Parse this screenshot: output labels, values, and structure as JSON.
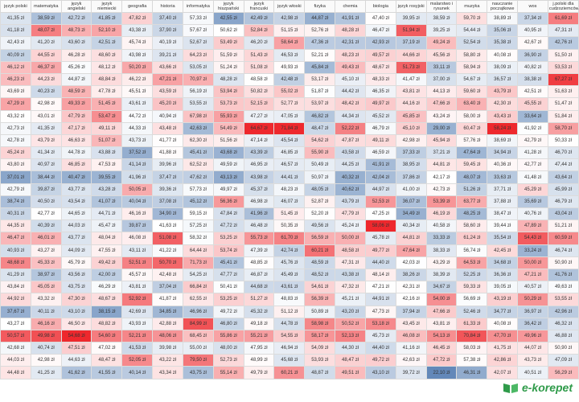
{
  "table": {
    "columns": [
      "język polski",
      "matematyka",
      "język angielski",
      "język niemiecki",
      "geografia",
      "historia",
      "informatyka",
      "język hiszpański",
      "język francuski",
      "język włoski",
      "fizyka",
      "chemia",
      "biologia",
      "język rosyjski",
      "malarstwo i rysunek",
      "muzyka",
      "nauczanie początkowe",
      "wos",
      "j.polski dla cudzoziemców"
    ],
    "rows": [
      [
        "41,35 zł",
        "38,59 zł",
        "42,72 zł",
        "41,85 zł",
        "47,82 zł",
        "37,40 zł",
        "57,33 zł",
        "42,55 zł",
        "42,49 zł",
        "42,98 zł",
        "44,87 zł",
        "41,91 zł",
        "47,40 zł",
        "39,95 zł",
        "38,59 zł",
        "59,70 zł",
        "38,89 zł",
        "37,34 zł",
        "61,69 zł"
      ],
      [
        "41,18 zł",
        "48,07 zł",
        "48,73 zł",
        "52,10 zł",
        "43,38 zł",
        "37,90 zł",
        "57,67 zł",
        "50,62 zł",
        "52,84 zł",
        "51,15 zł",
        "52,76 zł",
        "48,28 zł",
        "46,47 zł",
        "51,94 zł",
        "39,25 zł",
        "54,44 zł",
        "35,06 zł",
        "40,95 zł",
        "47,31 zł"
      ],
      [
        "42,43 zł",
        "41,20 zł",
        "43,60 zł",
        "42,51 zł",
        "45,74 zł",
        "40,19 zł",
        "52,67 zł",
        "53,49 zł",
        "46,20 zł",
        "58,64 zł",
        "47,36 zł",
        "42,31 zł",
        "42,93 zł",
        "37,19 zł",
        "49,24 zł",
        "52,54 zł",
        "35,38 zł",
        "42,67 zł",
        "42,76 zł"
      ],
      [
        "40,09 zł",
        "44,55 zł",
        "46,28 zł",
        "48,60 zł",
        "43,98 zł",
        "39,21 zł",
        "64,23 zł",
        "51,59 zł",
        "51,43 zł",
        "46,53 zł",
        "52,21 zł",
        "48,23 zł",
        "49,57 zł",
        "44,66 zł",
        "45,56 zł",
        "58,80 zł",
        "40,08 zł",
        "36,90 zł",
        "51,50 zł"
      ],
      [
        "46,12 zł",
        "46,37 zł",
        "45,26 zł",
        "48,12 zł",
        "50,20 zł",
        "43,66 zł",
        "53,05 zł",
        "51,24 zł",
        "51,08 zł",
        "49,93 zł",
        "45,84 zł",
        "49,43 zł",
        "48,67 zł",
        "51,73 zł",
        "33,11 zł",
        "58,94 zł",
        "38,09 zł",
        "40,82 zł",
        "53,53 zł"
      ],
      [
        "46,23 zł",
        "44,23 zł",
        "44,87 zł",
        "48,84 zł",
        "46,22 zł",
        "47,21 zł",
        "70,97 zł",
        "48,28 zł",
        "48,58 zł",
        "42,48 zł",
        "53,17 zł",
        "45,10 zł",
        "48,33 zł",
        "41,47 zł",
        "37,00 zł",
        "54,67 zł",
        "36,57 zł",
        "38,38 zł",
        "67,27 zł"
      ],
      [
        "43,69 zł",
        "40,23 zł",
        "48,59 zł",
        "47,78 zł",
        "45,51 zł",
        "43,59 zł",
        "56,19 zł",
        "53,94 zł",
        "50,82 zł",
        "55,02 zł",
        "51,87 zł",
        "44,42 zł",
        "46,35 zł",
        "43,81 zł",
        "44,13 zł",
        "59,60 zł",
        "43,79 zł",
        "42,51 zł",
        "51,63 zł"
      ],
      [
        "47,29 zł",
        "42,98 zł",
        "49,33 zł",
        "51,45 zł",
        "43,61 zł",
        "45,20 zł",
        "53,55 zł",
        "53,73 zł",
        "52,15 zł",
        "52,77 zł",
        "53,97 zł",
        "48,42 zł",
        "49,97 zł",
        "44,16 zł",
        "47,66 zł",
        "63,40 zł",
        "42,30 zł",
        "45,55 zł",
        "51,47 zł"
      ],
      [
        "43,32 zł",
        "43,01 zł",
        "47,79 zł",
        "53,47 zł",
        "44,72 zł",
        "40,94 zł",
        "67,98 zł",
        "55,93 zł",
        "47,27 zł",
        "47,05 zł",
        "46,82 zł",
        "44,34 zł",
        "45,52 zł",
        "45,85 zł",
        "43,24 zł",
        "58,00 zł",
        "43,43 zł",
        "33,64 zł",
        "51,84 zł"
      ],
      [
        "42,73 zł",
        "41,35 zł",
        "47,17 zł",
        "49,11 zł",
        "44,33 zł",
        "43,48 zł",
        "42,63 zł",
        "54,49 zł",
        "64,67 zł",
        "71,84 zł",
        "48,47 zł",
        "52,22 zł",
        "46,79 zł",
        "45,10 zł",
        "29,00 zł",
        "60,47 zł",
        "58,24 zł",
        "41,92 zł",
        "58,70 zł"
      ],
      [
        "42,78 zł",
        "43,79 zł",
        "46,63 zł",
        "51,07 zł",
        "43,73 zł",
        "41,77 zł",
        "62,30 zł",
        "51,56 zł",
        "47,14 zł",
        "45,54 zł",
        "54,62 zł",
        "47,87 zł",
        "49,11 zł",
        "42,98 zł",
        "45,94 zł",
        "57,76 zł",
        "38,69 zł",
        "42,79 zł",
        "50,33 zł"
      ],
      [
        "45,24 zł",
        "41,34 zł",
        "44,78 zł",
        "43,88 zł",
        "37,52 zł",
        "41,88 zł",
        "45,41 zł",
        "43,68 zł",
        "43,39 zł",
        "46,85 zł",
        "55,90 zł",
        "43,58 zł",
        "46,59 zł",
        "37,33 zł",
        "37,21 zł",
        "47,64 zł",
        "34,94 zł",
        "41,28 zł",
        "46,70 zł"
      ],
      [
        "43,80 zł",
        "40,97 zł",
        "46,85 zł",
        "47,53 zł",
        "41,14 zł",
        "39,96 zł",
        "62,52 zł",
        "49,59 zł",
        "46,95 zł",
        "46,57 zł",
        "50,49 zł",
        "44,25 zł",
        "41,91 zł",
        "38,95 zł",
        "44,81 zł",
        "59,45 zł",
        "40,36 zł",
        "42,77 zł",
        "47,44 zł"
      ],
      [
        "37,01 zł",
        "38,44 zł",
        "40,47 zł",
        "39,55 zł",
        "41,96 zł",
        "37,47 zł",
        "47,62 zł",
        "43,13 zł",
        "43,98 zł",
        "44,41 zł",
        "50,97 zł",
        "40,32 zł",
        "42,04 zł",
        "37,86 zł",
        "42,17 zł",
        "48,07 zł",
        "33,63 zł",
        "41,48 zł",
        "43,64 zł"
      ],
      [
        "42,79 zł",
        "39,87 zł",
        "43,77 zł",
        "43,28 zł",
        "50,05 zł",
        "39,36 zł",
        "57,73 zł",
        "49,97 zł",
        "45,37 zł",
        "48,23 zł",
        "48,05 zł",
        "40,62 zł",
        "44,97 zł",
        "41,00 zł",
        "42,73 zł",
        "51,26 zł",
        "37,71 zł",
        "45,29 zł",
        "45,99 zł"
      ],
      [
        "38,74 zł",
        "40,50 zł",
        "43,54 zł",
        "41,07 zł",
        "40,04 zł",
        "37,08 zł",
        "45,12 zł",
        "56,36 zł",
        "46,98 zł",
        "46,07 zł",
        "52,87 zł",
        "43,79 zł",
        "52,53 zł",
        "36,07 zł",
        "53,39 zł",
        "63,77 zł",
        "37,88 zł",
        "35,69 zł",
        "46,79 zł"
      ],
      [
        "40,31 zł",
        "42,77 zł",
        "44,65 zł",
        "44,71 zł",
        "46,16 zł",
        "34,90 zł",
        "59,15 zł",
        "47,84 zł",
        "41,96 zł",
        "51,45 zł",
        "52,20 zł",
        "47,79 zł",
        "47,25 zł",
        "34,49 zł",
        "46,19 zł",
        "48,25 zł",
        "38,47 zł",
        "40,76 zł",
        "43,04 zł"
      ],
      [
        "44,35 zł",
        "40,39 zł",
        "44,03 zł",
        "45,47 zł",
        "39,87 zł",
        "41,63 zł",
        "57,25 zł",
        "47,72 zł",
        "46,48 zł",
        "50,35 zł",
        "49,56 zł",
        "45,24 zł",
        "58,06 zł",
        "40,34 zł",
        "40,58 zł",
        "58,60 zł",
        "39,44 zł",
        "47,89 zł",
        "51,21 zł"
      ],
      [
        "46,47 zł",
        "46,01 zł",
        "43,77 zł",
        "48,04 zł",
        "46,08 zł",
        "51,08 zł",
        "58,32 zł",
        "53,25 zł",
        "55,73 zł",
        "61,70 zł",
        "56,59 zł",
        "50,00 zł",
        "45,78 zł",
        "44,81 zł",
        "33,33 zł",
        "61,24 zł",
        "35,54 zł",
        "54,43 zł",
        "60,59 zł"
      ],
      [
        "40,93 zł",
        "43,27 zł",
        "44,09 zł",
        "47,55 zł",
        "43,11 zł",
        "41,22 zł",
        "64,44 zł",
        "53,74 zł",
        "47,39 zł",
        "42,74 zł",
        "60,21 zł",
        "48,58 zł",
        "49,77 zł",
        "47,64 zł",
        "38,33 zł",
        "56,74 zł",
        "42,45 zł",
        "33,24 zł",
        "46,74 zł"
      ],
      [
        "48,68 zł",
        "45,33 zł",
        "45,79 zł",
        "49,42 zł",
        "52,51 zł",
        "50,70 zł",
        "71,73 zł",
        "45,41 zł",
        "48,85 zł",
        "45,76 zł",
        "48,59 zł",
        "47,31 zł",
        "44,40 zł",
        "42,03 zł",
        "43,29 zł",
        "64,53 zł",
        "34,68 zł",
        "50,00 zł",
        "50,90 zł"
      ],
      [
        "41,29 zł",
        "38,97 zł",
        "43,56 zł",
        "42,00 zł",
        "45,57 zł",
        "42,48 zł",
        "54,25 zł",
        "47,77 zł",
        "46,87 zł",
        "45,49 zł",
        "48,52 zł",
        "43,38 zł",
        "48,14 zł",
        "38,26 zł",
        "38,39 zł",
        "52,25 zł",
        "36,36 zł",
        "47,21 zł",
        "41,76 zł"
      ],
      [
        "43,84 zł",
        "45,05 zł",
        "43,75 zł",
        "46,29 zł",
        "43,81 zł",
        "37,04 zł",
        "66,84 zł",
        "50,41 zł",
        "44,68 zł",
        "43,61 zł",
        "54,61 zł",
        "47,32 zł",
        "47,21 zł",
        "42,31 zł",
        "34,67 zł",
        "59,33 zł",
        "39,05 zł",
        "40,57 zł",
        "49,63 zł"
      ],
      [
        "44,92 zł",
        "43,32 zł",
        "47,30 zł",
        "48,67 zł",
        "52,92 zł",
        "41,87 zł",
        "62,55 zł",
        "53,25 zł",
        "51,27 zł",
        "48,83 zł",
        "56,39 zł",
        "45,21 zł",
        "44,91 zł",
        "42,16 zł",
        "54,00 zł",
        "56,69 zł",
        "43,19 zł",
        "50,29 zł",
        "53,55 zł"
      ],
      [
        "37,67 zł",
        "40,11 zł",
        "43,10 zł",
        "38,15 zł",
        "42,69 zł",
        "34,85 zł",
        "46,96 zł",
        "49,72 zł",
        "45,32 zł",
        "51,12 zł",
        "50,89 zł",
        "43,20 zł",
        "47,73 zł",
        "37,94 zł",
        "47,66 zł",
        "52,46 zł",
        "34,77 zł",
        "36,97 zł",
        "42,96 zł"
      ],
      [
        "43,27 zł",
        "46,16 zł",
        "46,50 zł",
        "48,82 zł",
        "43,93 zł",
        "42,88 zł",
        "84,99 zł",
        "46,80 zł",
        "49,18 zł",
        "44,78 zł",
        "58,98 zł",
        "50,52 zł",
        "53,18 zł",
        "43,45 zł",
        "43,81 zł",
        "61,33 zł",
        "40,08 zł",
        "36,42 zł",
        "46,32 zł"
      ],
      [
        "50,57 zł",
        "49,98 zł",
        "54,68 zł",
        "54,60 zł",
        "52,21 zł",
        "48,06 zł",
        "68,45 zł",
        "55,86 zł",
        "55,21 zł",
        "54,55 zł",
        "58,17 zł",
        "52,13 zł",
        "45,73 zł",
        "46,08 zł",
        "54,13 zł",
        "70,84 zł",
        "47,70 zł",
        "49,96 zł",
        "46,88 zł"
      ],
      [
        "42,68 zł",
        "40,74 zł",
        "47,51 zł",
        "47,02 zł",
        "41,53 zł",
        "39,98 zł",
        "55,00 zł",
        "48,00 zł",
        "47,95 zł",
        "46,94 zł",
        "54,09 zł",
        "44,30 zł",
        "44,40 zł",
        "41,16 zł",
        "46,45 zł",
        "58,03 zł",
        "41,75 zł",
        "44,07 zł",
        "50,90 zł"
      ],
      [
        "44,03 zł",
        "42,98 zł",
        "44,63 zł",
        "48,47 zł",
        "52,05 zł",
        "43,22 zł",
        "79,50 zł",
        "52,73 zł",
        "48,99 zł",
        "45,68 zł",
        "53,93 zł",
        "48,47 zł",
        "49,72 zł",
        "42,63 zł",
        "47,72 zł",
        "57,38 zł",
        "42,86 zł",
        "43,73 zł",
        "47,09 zł"
      ],
      [
        "44,48 zł",
        "41,25 zł",
        "41,62 zł",
        "41,55 zł",
        "40,14 zł",
        "43,34 zł",
        "43,75 zł",
        "55,14 zł",
        "49,79 zł",
        "60,21 zł",
        "48,87 zł",
        "49,51 zł",
        "43,10 zł",
        "39,72 zł",
        "22,10 zł",
        "46,31 zł",
        "42,07 zł",
        "40,51 zł",
        "56,29 zł"
      ]
    ]
  },
  "footer": {
    "logo": "e-korepet"
  }
}
